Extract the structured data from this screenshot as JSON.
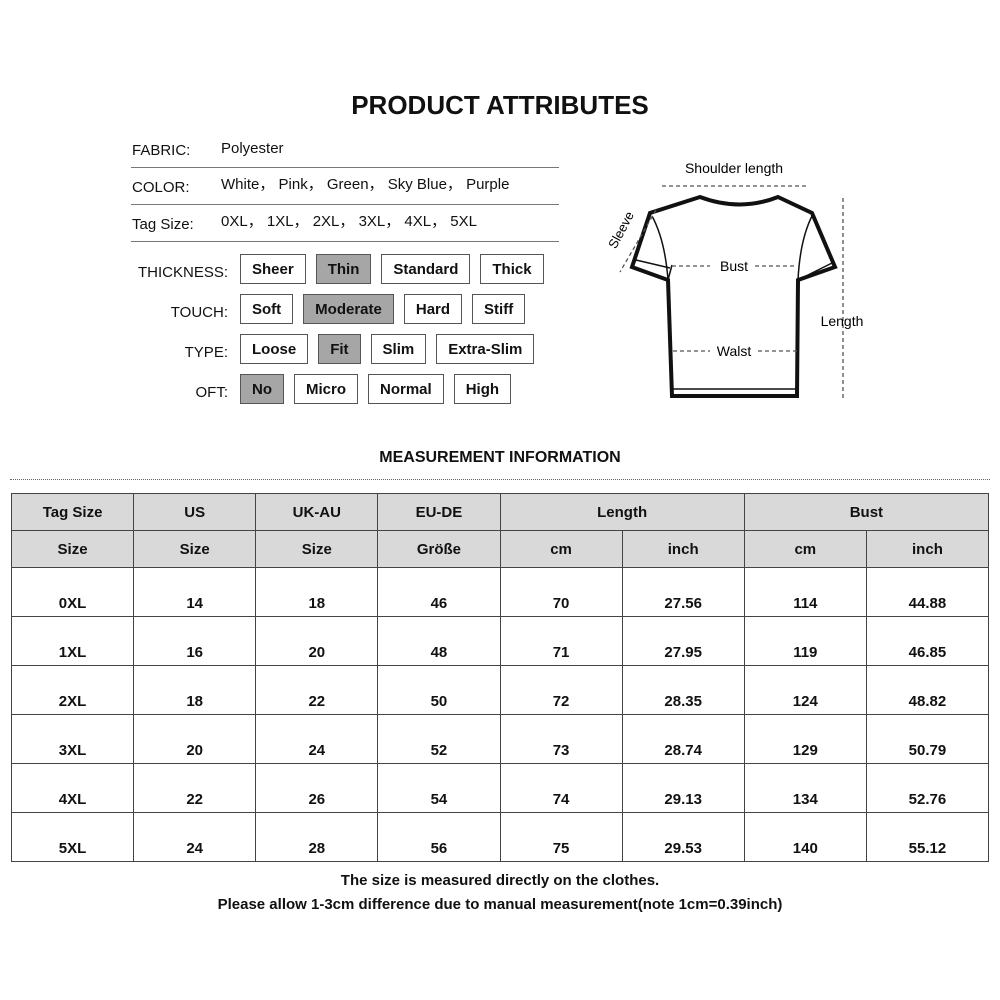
{
  "title": "PRODUCT ATTRIBUTES",
  "info": [
    {
      "label": "FABRIC:",
      "value": "Polyester"
    },
    {
      "label": "COLOR:",
      "value": "White， Pink， Green， Sky Blue， Purple"
    },
    {
      "label": "Tag Size:",
      "value": "0XL， 1XL， 2XL， 3XL， 4XL， 5XL"
    }
  ],
  "options": [
    {
      "label": "THICKNESS:",
      "items": [
        {
          "label": "Sheer",
          "selected": false
        },
        {
          "label": "Thin",
          "selected": true
        },
        {
          "label": "Standard",
          "selected": false
        },
        {
          "label": "Thick",
          "selected": false
        }
      ]
    },
    {
      "label": "TOUCH:",
      "items": [
        {
          "label": "Soft",
          "selected": false
        },
        {
          "label": "Moderate",
          "selected": true
        },
        {
          "label": "Hard",
          "selected": false
        },
        {
          "label": "Stiff",
          "selected": false
        }
      ]
    },
    {
      "label": "TYPE:",
      "items": [
        {
          "label": "Loose",
          "selected": false
        },
        {
          "label": "Fit",
          "selected": true
        },
        {
          "label": "Slim",
          "selected": false
        },
        {
          "label": "Extra-Slim",
          "selected": false
        }
      ]
    },
    {
      "label": "OFT:",
      "items": [
        {
          "label": "No",
          "selected": true
        },
        {
          "label": "Micro",
          "selected": false
        },
        {
          "label": "Normal",
          "selected": false
        },
        {
          "label": "High",
          "selected": false
        }
      ]
    }
  ],
  "diagram": {
    "shoulder": "Shoulder length",
    "sleeve": "Sleeve",
    "bust": "Bust",
    "waist": "Walst",
    "length": "Length"
  },
  "measurement_title": "MEASUREMENT INFORMATION",
  "table": {
    "header1": [
      "Tag Size",
      "US",
      "UK-AU",
      "EU-DE",
      "Length",
      "Bust"
    ],
    "header2": [
      "Size",
      "Size",
      "Size",
      "Größe",
      "cm",
      "inch",
      "cm",
      "inch"
    ],
    "rows": [
      [
        "0XL",
        "14",
        "18",
        "46",
        "70",
        "27.56",
        "114",
        "44.88"
      ],
      [
        "1XL",
        "16",
        "20",
        "48",
        "71",
        "27.95",
        "119",
        "46.85"
      ],
      [
        "2XL",
        "18",
        "22",
        "50",
        "72",
        "28.35",
        "124",
        "48.82"
      ],
      [
        "3XL",
        "20",
        "24",
        "52",
        "73",
        "28.74",
        "129",
        "50.79"
      ],
      [
        "4XL",
        "22",
        "26",
        "54",
        "74",
        "29.13",
        "134",
        "52.76"
      ],
      [
        "5XL",
        "24",
        "28",
        "56",
        "75",
        "29.53",
        "140",
        "55.12"
      ]
    ]
  },
  "notes": [
    "The size is measured directly on the clothes.",
    "Please allow 1-3cm difference due to manual measurement(note 1cm=0.39inch)"
  ]
}
